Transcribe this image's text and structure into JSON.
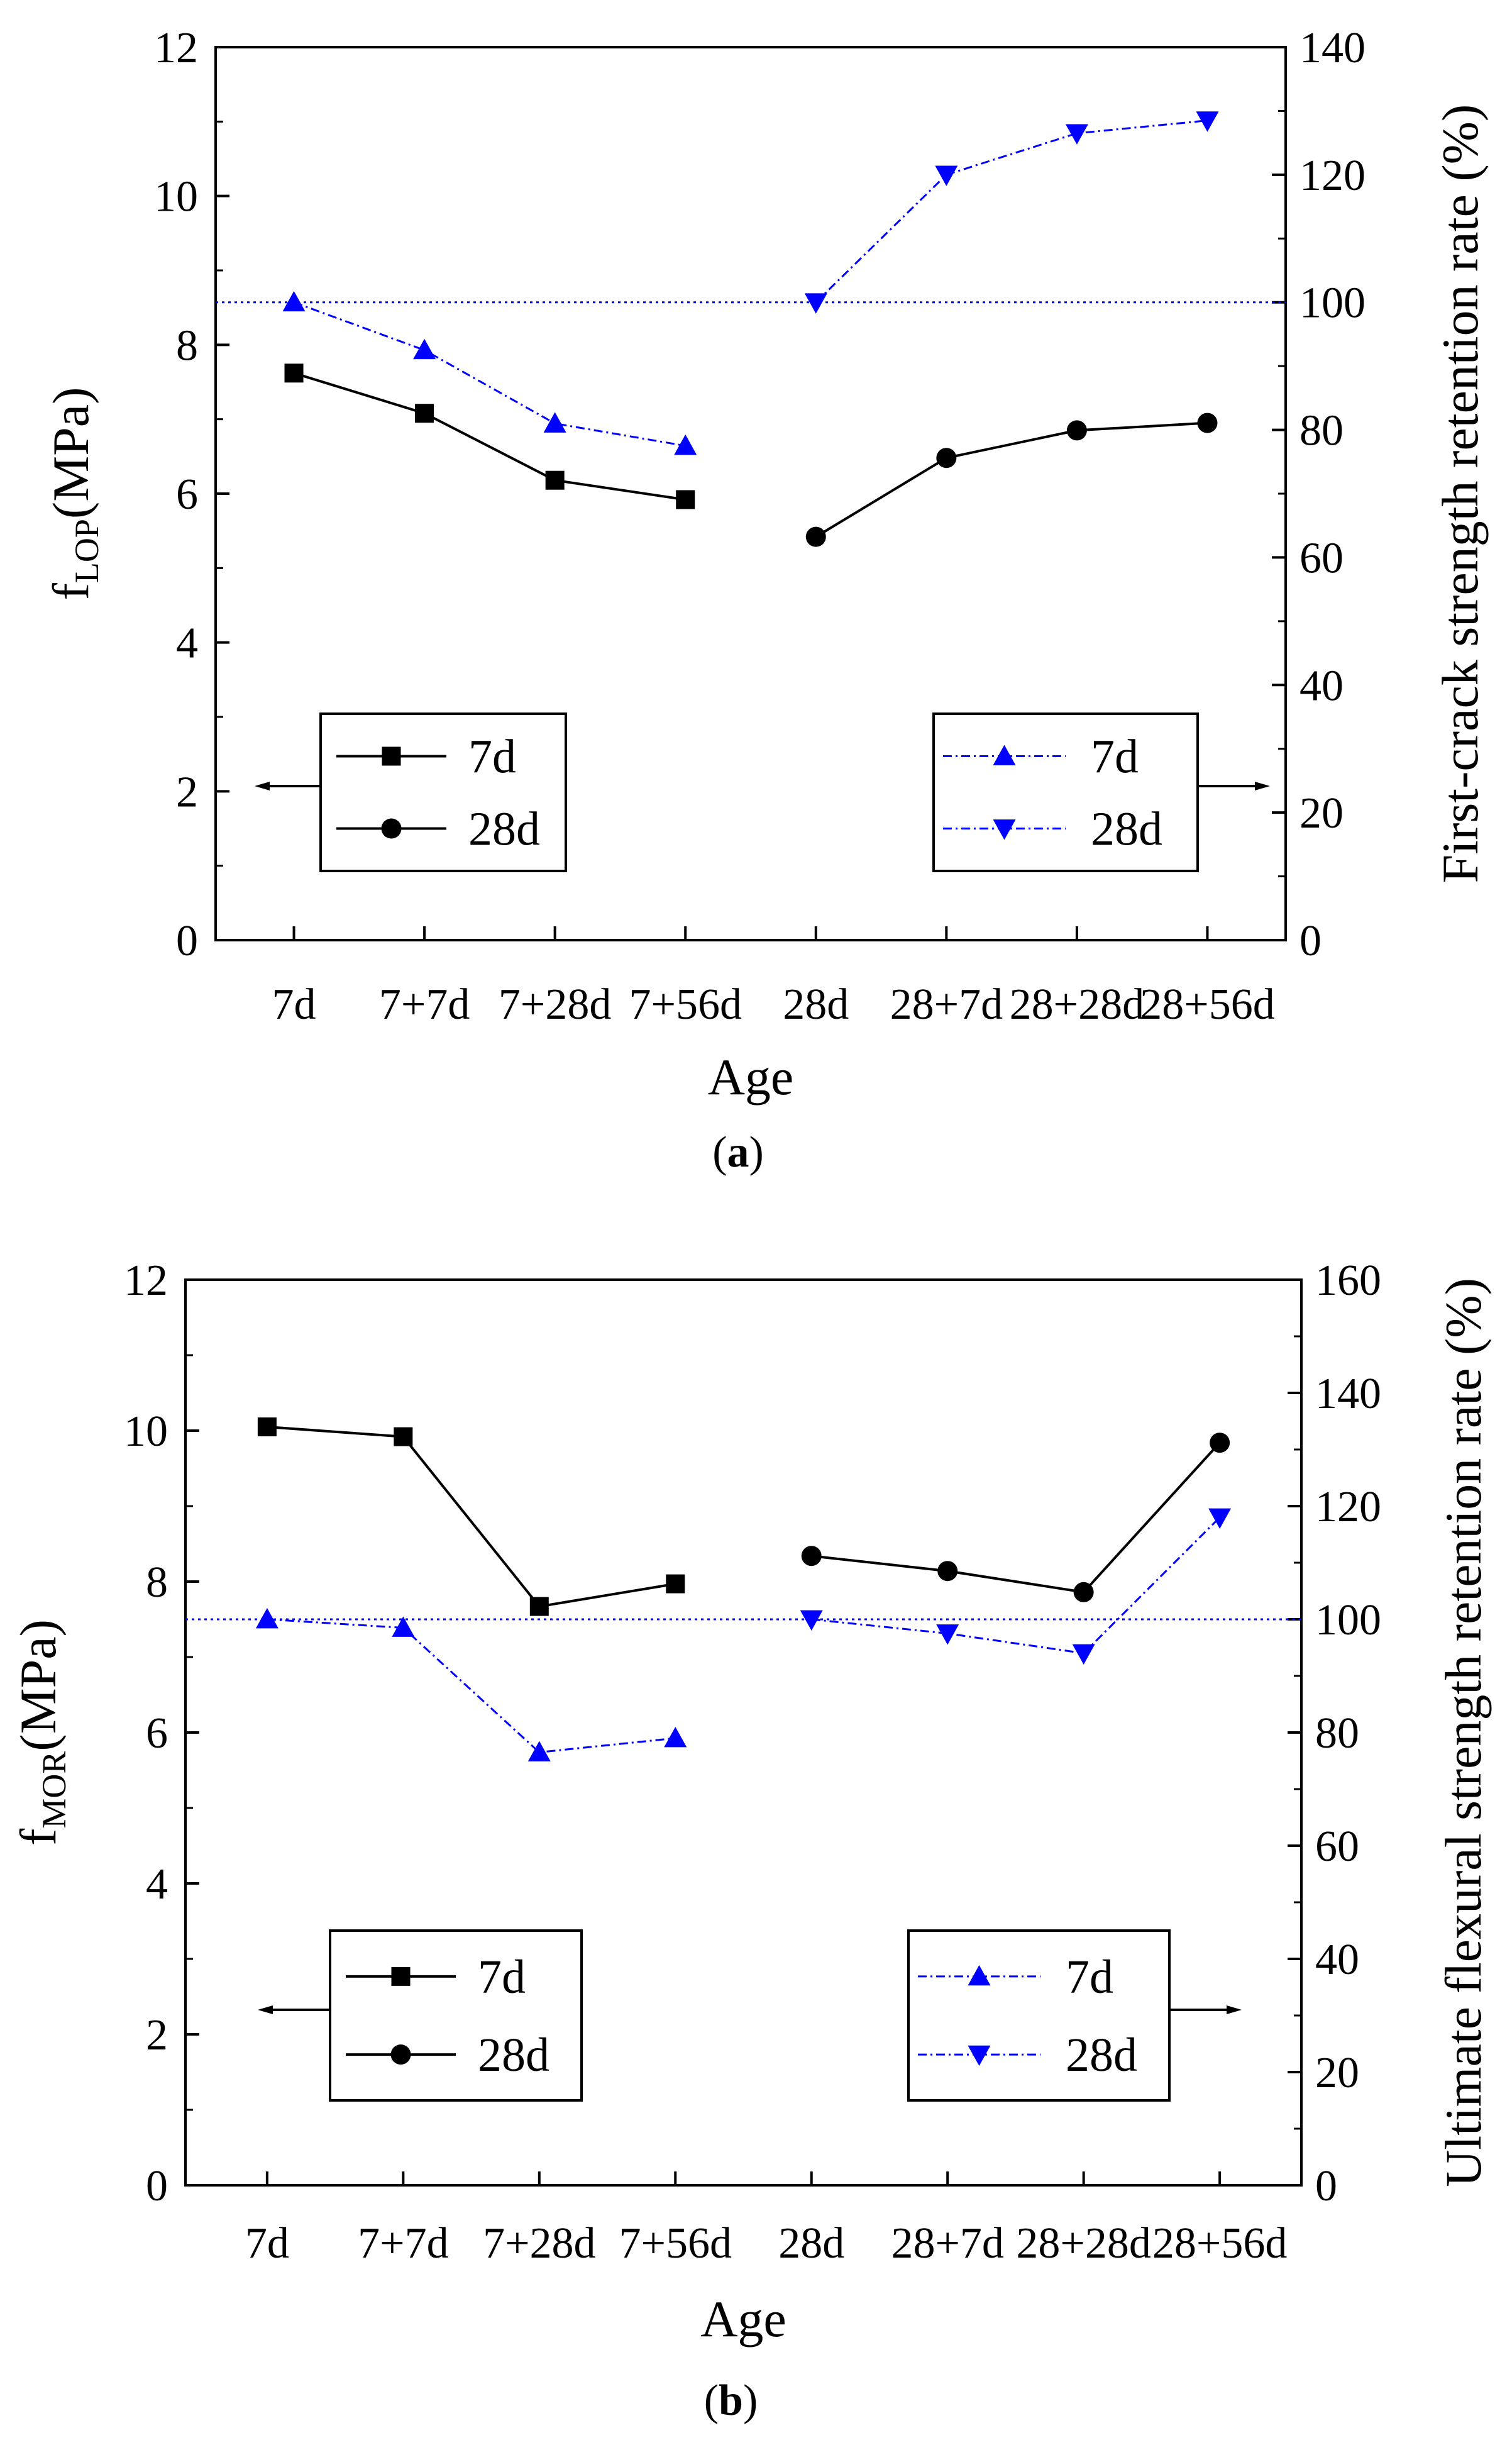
{
  "chart_data": [
    {
      "type": "line",
      "panel_label": "a",
      "categories": [
        "7d",
        "7+7d",
        "7+28d",
        "7+56d",
        "28d",
        "28+7d",
        "28+28d",
        "28+56d"
      ],
      "xlabel": "Age",
      "ylabel": {
        "base": "f",
        "sub": "LOP",
        "unit": "(MPa)"
      },
      "y2label": "First-crack strength retention rate (%)",
      "ylim": [
        0,
        12
      ],
      "yticks": [
        0,
        2,
        4,
        6,
        8,
        10,
        12
      ],
      "y2lim": [
        0,
        140
      ],
      "y2ticks": [
        0,
        20,
        40,
        60,
        80,
        100,
        120,
        140
      ],
      "reference_line_y2": 100,
      "series": [
        {
          "name": "7d",
          "axis": "left",
          "marker": "square",
          "color": "#000000",
          "line": "solid",
          "values": [
            7.62,
            7.08,
            6.18,
            5.92,
            null,
            null,
            null,
            null
          ]
        },
        {
          "name": "28d",
          "axis": "left",
          "marker": "circle",
          "color": "#000000",
          "line": "solid",
          "values": [
            null,
            null,
            null,
            null,
            5.42,
            6.48,
            6.85,
            6.95
          ]
        },
        {
          "name": "7d",
          "axis": "right",
          "marker": "triangle-up",
          "color": "#0000ff",
          "line": "dash-dot",
          "values": [
            100,
            92.5,
            81,
            77.5,
            null,
            null,
            null,
            null
          ]
        },
        {
          "name": "28d",
          "axis": "right",
          "marker": "triangle-down",
          "color": "#0000ff",
          "line": "dash-dot",
          "values": [
            null,
            null,
            null,
            null,
            100,
            120,
            126.5,
            128.5
          ]
        }
      ],
      "legend_left": {
        "placement": "bottom-left",
        "arrow": "left"
      },
      "legend_right": {
        "placement": "bottom-right",
        "arrow": "right"
      }
    },
    {
      "type": "line",
      "panel_label": "b",
      "categories": [
        "7d",
        "7+7d",
        "7+28d",
        "7+56d",
        "28d",
        "28+7d",
        "28+28d",
        "28+56d"
      ],
      "xlabel": "Age",
      "ylabel": {
        "base": "f",
        "sub": "MOR",
        "unit": "(MPa)"
      },
      "y2label": "Ultimate flexural strength retention rate (%)",
      "ylim": [
        0,
        12
      ],
      "yticks": [
        0,
        2,
        4,
        6,
        8,
        10,
        12
      ],
      "y2lim": [
        0,
        160
      ],
      "y2ticks": [
        0,
        20,
        40,
        60,
        80,
        100,
        120,
        140,
        160
      ],
      "reference_line_y2": 100,
      "series": [
        {
          "name": "7d",
          "axis": "left",
          "marker": "square",
          "color": "#000000",
          "line": "solid",
          "values": [
            10.05,
            9.92,
            7.67,
            7.97,
            null,
            null,
            null,
            null
          ]
        },
        {
          "name": "28d",
          "axis": "left",
          "marker": "circle",
          "color": "#000000",
          "line": "solid",
          "values": [
            null,
            null,
            null,
            null,
            8.34,
            8.14,
            7.86,
            9.84
          ]
        },
        {
          "name": "7d",
          "axis": "right",
          "marker": "triangle-up",
          "color": "#0000ff",
          "line": "dash-dot",
          "values": [
            100,
            98.5,
            76.5,
            79,
            null,
            null,
            null,
            null
          ]
        },
        {
          "name": "28d",
          "axis": "right",
          "marker": "triangle-down",
          "color": "#0000ff",
          "line": "dash-dot",
          "values": [
            null,
            null,
            null,
            null,
            100,
            97.5,
            94,
            118
          ]
        }
      ],
      "legend_left": {
        "placement": "bottom-left",
        "arrow": "left"
      },
      "legend_right": {
        "placement": "bottom-right",
        "arrow": "right"
      }
    }
  ]
}
